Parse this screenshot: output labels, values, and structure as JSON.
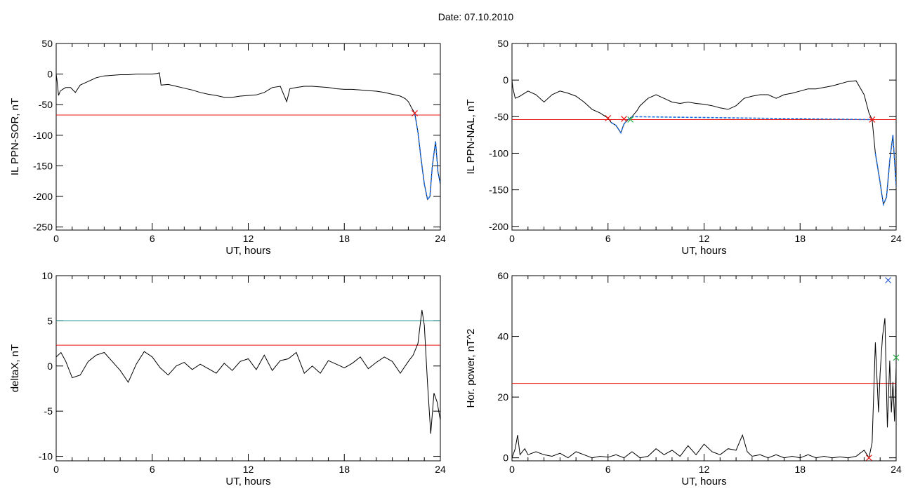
{
  "title": "Date:  07.10.2010",
  "colors": {
    "trace": "#000000",
    "threshold": "#e8140f",
    "upper_threshold": "#0e8c8c",
    "segment": "#1f6fe0",
    "cross_red": "#e8140f",
    "cross_green": "#29b34a",
    "cross_blue": "#2e5fd6"
  },
  "chart_data": [
    {
      "type": "line",
      "xlabel": "UT, hours",
      "ylabel": "IL PPN-SOR, nT",
      "xlim": [
        0,
        24
      ],
      "ylim": [
        -255,
        50
      ],
      "xticks": [
        0,
        6,
        12,
        18,
        24
      ],
      "xticklabels": [
        "0",
        "6",
        "12",
        "18",
        "24"
      ],
      "yticks": [
        50,
        0,
        -50,
        -100,
        -150,
        -200,
        -250
      ],
      "yticklabels": [
        "50",
        "0",
        "-50",
        "-100",
        "-150",
        "-200",
        "-250"
      ],
      "series": [
        {
          "x": [
            0,
            0.05,
            0.15,
            0.25,
            0.4,
            0.6,
            0.9,
            1.2,
            1.5,
            2.0,
            2.5,
            3.0,
            3.5,
            4.0,
            4.5,
            5.0,
            5.5,
            6.0,
            6.3,
            6.45,
            6.55,
            7.0,
            7.5,
            8.0,
            8.5,
            9.0,
            9.5,
            10.0,
            10.5,
            11.0,
            11.5,
            12.0,
            12.5,
            13.0,
            13.5,
            14.0,
            14.4,
            14.6,
            15.0,
            15.5,
            16.0,
            16.5,
            17.0,
            17.5,
            18.0,
            18.5,
            19.0,
            19.5,
            20.0,
            20.5,
            21.0,
            21.5,
            21.8,
            22.0,
            22.2,
            22.4,
            22.6,
            22.8,
            23.0,
            23.2,
            23.35,
            23.5,
            23.7,
            23.85,
            24.0
          ],
          "y": [
            0,
            -10,
            -35,
            -28,
            -25,
            -22,
            -22,
            -30,
            -18,
            -12,
            -6,
            -3,
            -2,
            -1,
            -1,
            0,
            0,
            0,
            1,
            2,
            -18,
            -17,
            -20,
            -23,
            -26,
            -30,
            -33,
            -35,
            -38,
            -38,
            -36,
            -35,
            -34,
            -30,
            -22,
            -20,
            -45,
            -24,
            -22,
            -20,
            -20,
            -21,
            -22,
            -24,
            -25,
            -25,
            -26,
            -27,
            -28,
            -30,
            -33,
            -36,
            -40,
            -45,
            -55,
            -64,
            -95,
            -140,
            -180,
            -205,
            -200,
            -150,
            -110,
            -160,
            -180
          ]
        }
      ],
      "threshold": -67,
      "highlight": {
        "x": [
          22.4,
          22.6,
          22.8,
          23.0,
          23.2,
          23.35,
          23.5,
          23.7,
          23.85,
          24.0
        ],
        "y": [
          -64,
          -95,
          -140,
          -180,
          -205,
          -200,
          -150,
          -110,
          -160,
          -180
        ]
      },
      "markers": [
        {
          "x": 22.4,
          "y": -64,
          "color": "cross_red"
        }
      ]
    },
    {
      "type": "line",
      "xlabel": "UT, hours",
      "ylabel": "IL PPN-NAL, nT",
      "xlim": [
        0,
        24
      ],
      "ylim": [
        -205,
        50
      ],
      "xticks": [
        0,
        6,
        12,
        18,
        24
      ],
      "xticklabels": [
        "0",
        "6",
        "12",
        "18",
        "24"
      ],
      "yticks": [
        50,
        0,
        -50,
        -100,
        -150,
        -200
      ],
      "yticklabels": [
        "50",
        "0",
        "-50",
        "-100",
        "-150",
        "-200"
      ],
      "series": [
        {
          "x": [
            0,
            0.05,
            0.2,
            0.5,
            1.0,
            1.5,
            2.0,
            2.5,
            3.0,
            3.5,
            4.0,
            4.5,
            5.0,
            5.5,
            6.0,
            6.2,
            6.5,
            6.8,
            7.0,
            7.2,
            7.5,
            7.8,
            8.0,
            8.5,
            9.0,
            9.5,
            10.0,
            10.5,
            11.0,
            11.5,
            12.0,
            12.5,
            13.0,
            13.5,
            14.0,
            14.5,
            15.0,
            15.5,
            16.0,
            16.5,
            17.0,
            17.5,
            18.0,
            18.5,
            19.0,
            19.5,
            20.0,
            20.5,
            21.0,
            21.5,
            22.0,
            22.3,
            22.5,
            22.7,
            23.0,
            23.2,
            23.4,
            23.6,
            23.8,
            24.0
          ],
          "y": [
            0,
            -10,
            -25,
            -22,
            -15,
            -20,
            -30,
            -20,
            -15,
            -18,
            -22,
            -30,
            -40,
            -45,
            -52,
            -58,
            -62,
            -72,
            -60,
            -55,
            -50,
            -42,
            -35,
            -25,
            -20,
            -25,
            -30,
            -32,
            -30,
            -32,
            -33,
            -35,
            -38,
            -40,
            -35,
            -25,
            -22,
            -20,
            -20,
            -25,
            -20,
            -18,
            -15,
            -12,
            -12,
            -10,
            -8,
            -5,
            -2,
            -1,
            -20,
            -45,
            -54,
            -100,
            -140,
            -170,
            -160,
            -110,
            -75,
            -145
          ]
        }
      ],
      "threshold": -54,
      "highlight": {
        "x": [
          6.2,
          6.5,
          6.8,
          7.0,
          7.2,
          7.5,
          22.5,
          22.7,
          23.0,
          23.2,
          23.4,
          23.6,
          23.8,
          24.0
        ],
        "y": [
          -58,
          -62,
          -72,
          -60,
          -55,
          -50,
          -54,
          -100,
          -140,
          -170,
          -160,
          -110,
          -75,
          -145
        ],
        "breaks": [
          6
        ]
      },
      "markers": [
        {
          "x": 6.0,
          "y": -52,
          "color": "cross_red"
        },
        {
          "x": 7.0,
          "y": -53,
          "color": "cross_red"
        },
        {
          "x": 7.4,
          "y": -54,
          "color": "cross_green"
        },
        {
          "x": 22.5,
          "y": -54,
          "color": "cross_red"
        }
      ]
    },
    {
      "type": "line",
      "xlabel": "UT, hours",
      "ylabel": "deltaX, nT",
      "xlim": [
        0,
        24
      ],
      "ylim": [
        -10.5,
        10
      ],
      "xticks": [
        0,
        6,
        12,
        18,
        24
      ],
      "xticklabels": [
        "0",
        "6",
        "12",
        "18",
        "24"
      ],
      "yticks": [
        10,
        5,
        0,
        -5,
        -10
      ],
      "yticklabels": [
        "10",
        "5",
        "0",
        "-5",
        "-10"
      ],
      "series": [
        {
          "x": [
            0,
            0.3,
            0.6,
            1.0,
            1.5,
            2.0,
            2.5,
            3.0,
            3.5,
            4.0,
            4.5,
            5.0,
            5.5,
            6.0,
            6.5,
            7.0,
            7.5,
            8.0,
            8.5,
            9.0,
            9.5,
            10.0,
            10.5,
            11.0,
            11.5,
            12.0,
            12.5,
            13.0,
            13.5,
            14.0,
            14.5,
            15.0,
            15.5,
            16.0,
            16.5,
            17.0,
            17.5,
            18.0,
            18.5,
            19.0,
            19.5,
            20.0,
            20.5,
            21.0,
            21.5,
            22.0,
            22.3,
            22.6,
            22.85,
            23.0,
            23.2,
            23.4,
            23.6,
            23.8,
            24.0
          ],
          "y": [
            1,
            1.5,
            0.5,
            -1.3,
            -1,
            0.5,
            1.2,
            1.5,
            0.5,
            -0.5,
            -1.8,
            0.2,
            1.6,
            1.0,
            -0.2,
            -1.0,
            0,
            0.4,
            -0.4,
            0.2,
            -0.3,
            -0.8,
            0.3,
            -0.5,
            0.5,
            0.8,
            -0.4,
            1.2,
            -0.5,
            0.6,
            0.8,
            1.5,
            -0.8,
            0,
            -0.8,
            0.6,
            0.2,
            -0.2,
            0.3,
            1.0,
            -0.3,
            0.4,
            1.0,
            0.5,
            -0.8,
            0.5,
            1.2,
            2.5,
            6.2,
            4.5,
            -2,
            -7.5,
            -3,
            -4,
            -6
          ]
        }
      ],
      "threshold": 2.3,
      "upper_threshold": 5
    },
    {
      "type": "line",
      "xlabel": "UT, hours",
      "ylabel": "Hor. power, nT^2",
      "xlim": [
        0,
        24
      ],
      "ylim": [
        -1,
        60
      ],
      "xticks": [
        0,
        6,
        12,
        18,
        24
      ],
      "xticklabels": [
        "0",
        "6",
        "12",
        "18",
        "24"
      ],
      "yticks": [
        60,
        40,
        20,
        0
      ],
      "yticklabels": [
        "60",
        "40",
        "20",
        "0"
      ],
      "series": [
        {
          "x": [
            0,
            0.2,
            0.35,
            0.5,
            0.8,
            1.0,
            1.5,
            2.0,
            2.5,
            3.0,
            3.5,
            4.0,
            4.5,
            5.0,
            5.5,
            6.0,
            6.5,
            7.0,
            7.5,
            8.0,
            8.5,
            9.0,
            9.5,
            10.0,
            10.5,
            11.0,
            11.5,
            12.0,
            12.5,
            13.0,
            13.5,
            14.0,
            14.4,
            14.7,
            15.0,
            15.5,
            16.0,
            16.5,
            17.0,
            17.5,
            18.0,
            18.5,
            19.0,
            19.5,
            20.0,
            20.5,
            21.0,
            21.5,
            22.0,
            22.3,
            22.5,
            22.7,
            22.9,
            23.0,
            23.15,
            23.3,
            23.45,
            23.6,
            23.7,
            23.8,
            23.9,
            24.0
          ],
          "y": [
            0,
            3,
            7.5,
            1,
            3,
            1,
            2,
            1,
            0.5,
            1.5,
            0,
            2,
            1,
            0,
            0.5,
            0.2,
            1,
            0,
            2,
            0,
            0.5,
            3,
            1,
            2.5,
            0.5,
            4,
            1,
            4.5,
            2,
            1,
            3,
            2.5,
            7.5,
            2,
            0.5,
            1,
            0,
            1,
            0,
            0.5,
            0,
            1,
            0,
            0.5,
            0,
            0.3,
            0,
            0.5,
            2.5,
            0,
            5,
            38,
            15,
            28,
            40,
            46,
            10,
            32,
            15,
            25,
            12,
            30
          ]
        }
      ],
      "threshold": 24.5,
      "markers": [
        {
          "x": 22.3,
          "y": 0,
          "color": "cross_red"
        },
        {
          "x": 23.5,
          "y": 58.5,
          "color": "cross_blue"
        },
        {
          "x": 24.0,
          "y": 33,
          "color": "cross_green"
        }
      ]
    }
  ]
}
